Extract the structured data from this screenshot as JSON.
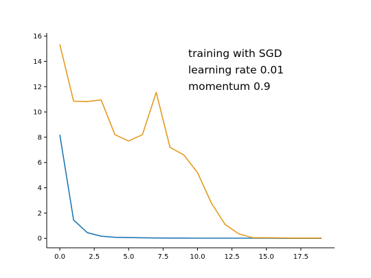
{
  "chart_data": {
    "type": "line",
    "x": [
      0,
      1,
      2,
      3,
      4,
      5,
      6,
      7,
      8,
      9,
      10,
      11,
      12,
      13,
      14,
      15,
      16,
      17,
      18,
      19
    ],
    "series": [
      {
        "color": "#1f77b4",
        "values": [
          8.2,
          1.45,
          0.45,
          0.17,
          0.08,
          0.06,
          0.04,
          0.03,
          0.02,
          0.02,
          0.01,
          0.01,
          0.01,
          0.01,
          0.01,
          0.01,
          0.0,
          0.0,
          0.0,
          0.0
        ]
      },
      {
        "color": "#e39a1e",
        "values": [
          15.35,
          10.85,
          10.82,
          10.95,
          8.2,
          7.7,
          8.2,
          11.55,
          7.2,
          6.6,
          5.2,
          2.8,
          1.1,
          0.35,
          0.05,
          0.05,
          0.03,
          0.02,
          0.02,
          0.02
        ]
      }
    ],
    "xlim": [
      -0.95,
      19.95
    ],
    "ylim": [
      -0.75,
      16.25
    ],
    "xticks": [
      "0.0",
      "2.5",
      "5.0",
      "7.5",
      "10.0",
      "12.5",
      "15.0",
      "17.5"
    ],
    "yticks": [
      "0",
      "2",
      "4",
      "6",
      "8",
      "10",
      "12",
      "14",
      "16"
    ],
    "annotation": [
      "training with SGD",
      "learning rate 0.01",
      "momentum 0.9"
    ],
    "grid": false,
    "legend": "none"
  }
}
